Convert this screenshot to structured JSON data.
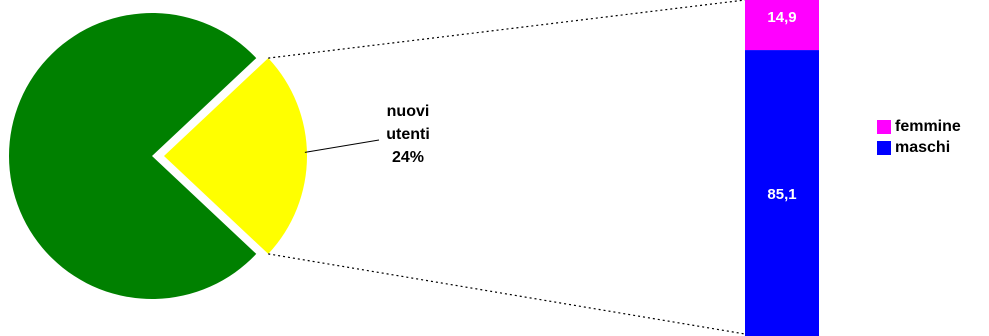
{
  "chart_data": [
    {
      "type": "pie",
      "slices": [
        {
          "label": "",
          "value": 76,
          "color": "#008000"
        },
        {
          "label": "nuovi utenti",
          "value": 24,
          "color": "#ffff00",
          "exploded": true
        }
      ],
      "slice_label": {
        "lines": [
          "nuovi",
          "utenti",
          "24%"
        ]
      }
    },
    {
      "type": "bar",
      "stacked": true,
      "unit": "%",
      "categories": [
        "nuovi utenti"
      ],
      "series": [
        {
          "name": "maschi",
          "values": [
            85.1
          ],
          "value_label": "85,1",
          "color": "#0000ff"
        },
        {
          "name": "femmine",
          "values": [
            14.9
          ],
          "value_label": "14,9",
          "color": "#ff00ff"
        }
      ],
      "ylim": [
        0,
        100
      ],
      "legend": {
        "position": "right",
        "items": [
          {
            "label": "femmine",
            "color": "#ff00ff"
          },
          {
            "label": "maschi",
            "color": "#0000ff"
          }
        ]
      }
    }
  ]
}
